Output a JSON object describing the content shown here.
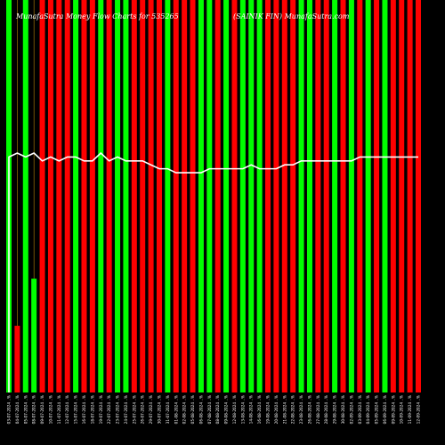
{
  "chart_data": {
    "type": "bar",
    "title_left": "MunafaSutra Money Flow  Charts for 535265",
    "title_right": "(SAINIK FIN) MunafaSutra.com",
    "colors": {
      "background": "#000000",
      "up": "#00ff00",
      "down": "#ff0000",
      "grid": "#b8860b",
      "line": "#ffffff",
      "text": "#ffffff"
    },
    "ylim": [
      0,
      100
    ],
    "categories": [
      "03-07-2024 ..%",
      "04-07-2024 ..%",
      "05-07-2024 ..%",
      "08-07-2024 ..%",
      "09-07-2024 ..%",
      "10-07-2024 ..%",
      "11-07-2024 ..%",
      "12-07-2024 ..%",
      "15-07-2024 ..%",
      "16-07-2024 ..%",
      "18-07-2024 ..%",
      "19-07-2024 ..%",
      "22-07-2024 ..%",
      "23-07-2024 ..%",
      "24-07-2024 ..%",
      "25-07-2024 ..%",
      "26-07-2024 ..%",
      "29-07-2024 ..%",
      "30-07-2024 ..%",
      "31-07-2024 ..%",
      "01-08-2024 ..%",
      "02-08-2024 ..%",
      "05-08-2024 ..%",
      "06-08-2024 ..%",
      "07-08-2024 ..%",
      "08-08-2024 ..%",
      "09-08-2024 ..%",
      "12-08-2024 ..%",
      "13-08-2024 ..%",
      "14-08-2024 ..%",
      "16-08-2024 ..%",
      "19-08-2024 ..%",
      "20-08-2024 ..%",
      "21-08-2024 ..%",
      "22-08-2024 ..%",
      "23-08-2024 ..%",
      "26-08-2024 ..%",
      "27-08-2024 ..%",
      "28-08-2024 ..%",
      "29-08-2024 ..%",
      "30-08-2024 ..%",
      "02-09-2024 ..%",
      "03-09-2024 ..%",
      "04-09-2024 ..%",
      "05-09-2024 ..%",
      "06-09-2024 ..%",
      "09-09-2024 ..%",
      "10-09-2024 ..%",
      "11-09-2024 ..%",
      "12-09-2024 ..%"
    ],
    "series": [
      {
        "values": [
          100,
          17,
          100,
          29,
          100,
          100,
          100,
          100,
          100,
          100,
          100,
          100,
          100,
          100,
          100,
          100,
          100,
          100,
          100,
          100,
          100,
          100,
          100,
          100,
          100,
          100,
          100,
          100,
          100,
          100,
          100,
          100,
          100,
          100,
          100,
          100,
          100,
          100,
          100,
          100,
          100,
          100,
          100,
          100,
          100,
          100,
          100,
          100,
          100,
          100
        ],
        "colors": [
          "up",
          "down",
          "up",
          "up",
          "down",
          "down",
          "down",
          "down",
          "up",
          "down",
          "down",
          "up",
          "down",
          "up",
          "up",
          "down",
          "down",
          "down",
          "down",
          "up",
          "down",
          "down",
          "down",
          "up",
          "up",
          "down",
          "up",
          "down",
          "up",
          "up",
          "up",
          "down",
          "down",
          "down",
          "down",
          "up",
          "up",
          "down",
          "down",
          "up",
          "down",
          "up",
          "down",
          "up",
          "down",
          "up",
          "down",
          "down",
          "down",
          "down"
        ]
      },
      {
        "name": "close-line",
        "values": [
          60,
          61,
          60,
          61,
          59,
          60,
          59,
          60,
          60,
          59,
          59,
          61,
          59,
          60,
          59,
          59,
          59,
          58,
          57,
          57,
          56,
          56,
          56,
          56,
          57,
          57,
          57,
          57,
          57,
          58,
          57,
          57,
          57,
          58,
          58,
          59,
          59,
          59,
          59,
          59,
          59,
          59,
          60,
          60,
          60,
          60,
          60,
          60,
          60,
          60
        ]
      }
    ]
  }
}
